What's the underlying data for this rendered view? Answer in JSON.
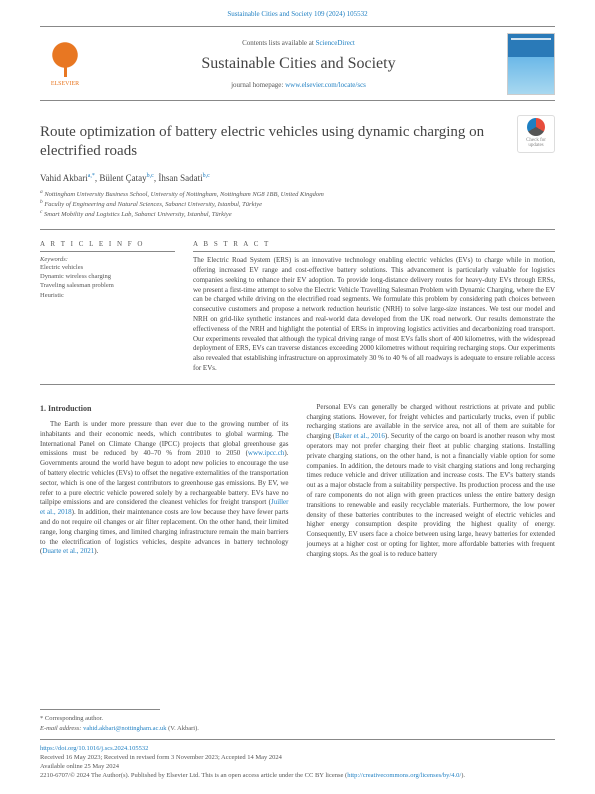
{
  "header": {
    "citation": "Sustainable Cities and Society 109 (2024) 105532",
    "contents_prefix": "Contents lists available at ",
    "contents_link": "ScienceDirect",
    "journal_name": "Sustainable Cities and Society",
    "homepage_prefix": "journal homepage: ",
    "homepage_link": "www.elsevier.com/locate/scs",
    "publisher": "ELSEVIER",
    "check_updates": "Check for updates"
  },
  "title": "Route optimization of battery electric vehicles using dynamic charging on electrified roads",
  "authors": {
    "a1_name": "Vahid Akbari",
    "a1_aff": "a,*",
    "a2_name": "Bülent Çatay",
    "a2_aff": "b,c",
    "a3_name": "İhsan Sadati",
    "a3_aff": "b,c"
  },
  "affiliations": {
    "a": "Nottingham University Business School, University of Nottingham, Nottingham NG8 1BB, United Kingdom",
    "b": "Faculty of Engineering and Natural Sciences, Sabanci University, Istanbul, Türkiye",
    "c": "Smart Mobility and Logistics Lab, Sabanci University, Istanbul, Türkiye"
  },
  "article_info": {
    "label": "A R T I C L E  I N F O",
    "keywords_label": "Keywords:",
    "keywords": "Electric vehicles\nDynamic wireless charging\nTraveling salesman problem\nHeuristic"
  },
  "abstract": {
    "label": "A B S T R A C T",
    "text": "The Electric Road System (ERS) is an innovative technology enabling electric vehicles (EVs) to charge while in motion, offering increased EV range and cost-effective battery solutions. This advancement is particularly valuable for logistics companies seeking to enhance their EV adoption. To provide long-distance delivery routes for heavy-duty EVs through ERSs, we present a first-time attempt to solve the Electric Vehicle Travelling Salesman Problem with Dynamic Charging, where the EV can be charged while driving on the electrified road segments. We formulate this problem by considering path choices between consecutive customers and propose a network reduction heuristic (NRH) to solve large-size instances. We test our model and NRH on grid-like synthetic instances and real-world data developed from the UK road network. Our results demonstrate the effectiveness of the NRH and highlight the potential of ERSs in improving logistics activities and decarbonizing road transport. Our experiments revealed that although the typical driving range of most EVs falls short of 400 kilometres, with the widespread deployment of ERS, EVs can traverse distances exceeding 2000 kilometres without requiring recharging stops. Our experiments also revealed that establishing infrastructure on approximately 30 % to 40 % of all roadways is adequate to ensure reliable access for EVs."
  },
  "body": {
    "heading": "1. Introduction",
    "p1a": "The Earth is under more pressure than ever due to the growing number of its inhabitants and their economic needs, which contributes to global warming. The International Panel on Climate Change (IPCC) projects that global greenhouse gas emissions must be reduced by 40–70 % from 2010 to 2050 (",
    "p1_link1": "www.ipcc.ch",
    "p1b": "). Governments around the world have begun to adopt new policies to encourage the use of battery electric vehicles (EVs) to offset the negative externalities of the transportation sector, which is one of the largest contributors to greenhouse gas emissions. By EV, we refer to a pure electric vehicle powered solely by a rechargeable battery. EVs have no tailpipe emissions and are considered the cleanest vehicles for freight transport (",
    "p1_link2": "Juiller et al., 2018",
    "p1c": "). In addition, their maintenance costs are low because they have fewer parts and do not require oil changes or air filter replacement. On the other hand, their limited range, long charging times, and limited charging infrastructure remain the main barriers to the electrification of logistics vehicles, despite advances in battery technology (",
    "p1_link3": "Duarte et al., 2021",
    "p1d": ").",
    "p2a": "Personal EVs can generally be charged without restrictions at private and public charging stations. However, for freight vehicles and particularly trucks, even if public recharging stations are available in the service area, not all of them are suitable for charging (",
    "p2_link1": "Baker et al., 2016",
    "p2b": "). Security of the cargo on board is another reason why most operators may not prefer charging their fleet at public charging stations. Installing private charging stations, on the other hand, is not a financially viable option for some companies. In addition, the detours made to visit charging stations and long recharging times reduce vehicle and driver utilization and increase costs. The EV's battery stands out as a major obstacle from a suitability perspective. Its production process and the use of rare components do not align with green practices unless the entire battery design transitions to renewable and easily recyclable materials. Furthermore, the low power density of these batteries contributes to the increased weight of electric vehicles and higher energy consumption despite providing the highest quality of energy. Consequently, EV users face a choice between using large, heavy batteries for extended journeys at a higher cost or opting for lighter, more affordable batteries with frequent charging stops. As the goal is to reduce battery"
  },
  "footer": {
    "corr": "* Corresponding author.",
    "email_label": "E-mail address: ",
    "email": "vahid.akbari@nottingham.ac.uk",
    "email_suffix": " (V. Akbari).",
    "doi": "https://doi.org/10.1016/j.scs.2024.105532",
    "history": "Received 16 May 2023; Received in revised form 3 November 2023; Accepted 14 May 2024",
    "online": "Available online 25 May 2024",
    "copyright_a": "2210-6707/© 2024 The Author(s). Published by Elsevier Ltd. This is an open access article under the CC BY license (",
    "copyright_link": "http://creativecommons.org/licenses/by/4.0/",
    "copyright_b": ")."
  },
  "colors": {
    "link": "#1e7fc2",
    "elsevier": "#e87722",
    "text": "#444444",
    "rule": "#888888"
  }
}
